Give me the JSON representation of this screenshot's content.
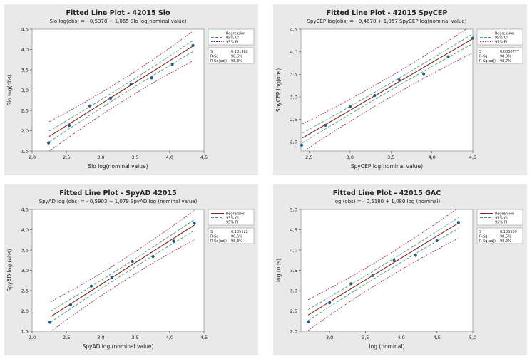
{
  "chart_data": [
    {
      "type": "scatter",
      "title": "Fitted Line Plot - 42015 Slo",
      "subtitle": "Slo log(obs) = - 0,5378 + 1,065 Slo log(nominal value)",
      "xlabel": "Slo log(nominal value)",
      "ylabel": "Slo log(obs)",
      "xlim": [
        2.0,
        4.5
      ],
      "ylim": [
        1.5,
        4.5
      ],
      "xticks": [
        2.0,
        2.5,
        3.0,
        3.5,
        4.0,
        4.5
      ],
      "xtick_labels": [
        "2,0",
        "2,5",
        "3,0",
        "3,5",
        "4,0",
        "4,5"
      ],
      "yticks": [
        1.5,
        2.0,
        2.5,
        3.0,
        3.5,
        4.0,
        4.5
      ],
      "ytick_labels": [
        "1,5",
        "2,0",
        "2,5",
        "3,0",
        "3,5",
        "4,0",
        "4,5"
      ],
      "intercept": -0.5378,
      "slope": 1.065,
      "ci_halfwidth": 0.1,
      "pi_halfwidth": 0.27,
      "fit_x": [
        2.25,
        4.34
      ],
      "x": [
        2.24,
        2.54,
        2.84,
        3.14,
        3.44,
        3.74,
        4.04,
        4.34
      ],
      "y": [
        1.7,
        2.13,
        2.61,
        2.8,
        3.15,
        3.3,
        3.64,
        4.1
      ],
      "legend": [
        {
          "label": "Regression",
          "color": "#8c1d1d",
          "dash": ""
        },
        {
          "label": "95% CI",
          "color": "#3f9e6e",
          "dash": "4,2"
        },
        {
          "label": "95% PI",
          "color": "#a0386e",
          "dash": "2,1.5"
        }
      ],
      "stats": [
        {
          "label": "S",
          "value": "0,101962"
        },
        {
          "label": "R-Sq",
          "value": "98,6%"
        },
        {
          "label": "R-Sq(adj)",
          "value": "98,3%"
        }
      ]
    },
    {
      "type": "scatter",
      "title": "Fitted Line Plot - 42015 SpyCEP",
      "subtitle": "SpyCEP log(obs) = - 0,4678 + 1,057 SpyCEP log(nominal value)",
      "xlabel": "SpyCEP log(nominal value)",
      "ylabel": "SpyCEP log(obs)",
      "xlim": [
        2.4,
        4.5
      ],
      "ylim": [
        1.8,
        4.5
      ],
      "xticks": [
        2.5,
        3.0,
        3.5,
        4.0,
        4.5
      ],
      "xtick_labels": [
        "2,5",
        "3,0",
        "3,5",
        "4,0",
        "4,5"
      ],
      "yticks": [
        2.0,
        2.5,
        3.0,
        3.5,
        4.0,
        4.5
      ],
      "ytick_labels": [
        "2,0",
        "2,5",
        "3,0",
        "3,5",
        "4,0",
        "4,5"
      ],
      "intercept": -0.4678,
      "slope": 1.057,
      "ci_halfwidth": 0.08,
      "pi_halfwidth": 0.23,
      "fit_x": [
        2.42,
        4.5
      ],
      "x": [
        2.41,
        2.7,
        3.0,
        3.3,
        3.6,
        3.9,
        4.2,
        4.5
      ],
      "y": [
        1.93,
        2.37,
        2.78,
        3.03,
        3.38,
        3.51,
        3.89,
        4.3
      ],
      "legend": [
        {
          "label": "Regression",
          "color": "#8c1d1d",
          "dash": ""
        },
        {
          "label": "95% CI",
          "color": "#3f9e6e",
          "dash": "4,2"
        },
        {
          "label": "95% PI",
          "color": "#a0386e",
          "dash": "2,1.5"
        }
      ],
      "stats": [
        {
          "label": "S",
          "value": "0,0880777"
        },
        {
          "label": "R-Sq",
          "value": "98,9%"
        },
        {
          "label": "R-Sq(adj)",
          "value": "98,7%"
        }
      ]
    },
    {
      "type": "scatter",
      "title": "Fitted Line Plot - SpyAD 42015",
      "subtitle": "SpyAD log (obs) = - 0,5903 + 1,079 SpyAD log (nominal value)",
      "xlabel": "SpyAD log (nominal value)",
      "ylabel": "SpyAD log (obs)",
      "xlim": [
        2.0,
        4.5
      ],
      "ylim": [
        1.5,
        4.5
      ],
      "xticks": [
        2.0,
        2.5,
        3.0,
        3.5,
        4.0,
        4.5
      ],
      "xtick_labels": [
        "2,0",
        "2,5",
        "3,0",
        "3,5",
        "4,0",
        "4,5"
      ],
      "yticks": [
        1.5,
        2.0,
        2.5,
        3.0,
        3.5,
        4.0,
        4.5
      ],
      "ytick_labels": [
        "1,5",
        "2,0",
        "2,5",
        "3,0",
        "3,5",
        "4,0",
        "4,5"
      ],
      "intercept": -0.5903,
      "slope": 1.079,
      "ci_halfwidth": 0.1,
      "pi_halfwidth": 0.27,
      "fit_x": [
        2.27,
        4.36
      ],
      "x": [
        2.26,
        2.56,
        2.86,
        3.16,
        3.46,
        3.76,
        4.06,
        4.36
      ],
      "y": [
        1.72,
        2.15,
        2.61,
        2.83,
        3.22,
        3.34,
        3.72,
        4.16
      ],
      "legend": [
        {
          "label": "Regression",
          "color": "#8c1d1d",
          "dash": ""
        },
        {
          "label": "95% CI",
          "color": "#3f9e6e",
          "dash": "4,2"
        },
        {
          "label": "95% PI",
          "color": "#a0386e",
          "dash": "2,1.5"
        }
      ],
      "stats": [
        {
          "label": "S",
          "value": "0,105122"
        },
        {
          "label": "R-Sq",
          "value": "98,6%"
        },
        {
          "label": "R-Sq(adj)",
          "value": "98,3%"
        }
      ]
    },
    {
      "type": "scatter",
      "title": "Fitted Line Plot - 42015 GAC",
      "subtitle": "log (obs) = - 0,5180 + 1,080 log (nominal)",
      "xlabel": "log (nominal)",
      "ylabel": "log (obs)",
      "xlim": [
        2.6,
        5.0
      ],
      "ylim": [
        2.0,
        5.0
      ],
      "xticks": [
        3.0,
        3.5,
        4.0,
        4.5,
        5.0
      ],
      "xtick_labels": [
        "3,0",
        "3,5",
        "4,0",
        "4,5",
        "5,0"
      ],
      "yticks": [
        2.0,
        2.5,
        3.0,
        3.5,
        4.0,
        4.5,
        5.0
      ],
      "ytick_labels": [
        "2,0",
        "2,5",
        "3,0",
        "3,5",
        "4,0",
        "4,5",
        "5,0"
      ],
      "intercept": -0.518,
      "slope": 1.08,
      "ci_halfwidth": 0.1,
      "pi_halfwidth": 0.28,
      "fit_x": [
        2.7,
        4.8
      ],
      "x": [
        2.7,
        3.0,
        3.3,
        3.6,
        3.9,
        4.2,
        4.5,
        4.8
      ],
      "y": [
        2.23,
        2.7,
        3.17,
        3.37,
        3.74,
        3.87,
        4.23,
        4.68
      ],
      "legend": [
        {
          "label": "Regression",
          "color": "#8c1d1d",
          "dash": ""
        },
        {
          "label": "95% CI",
          "color": "#3f9e6e",
          "dash": "4,2"
        },
        {
          "label": "95% PI",
          "color": "#a0386e",
          "dash": "2,1.5"
        }
      ],
      "stats": [
        {
          "label": "S",
          "value": "0,106509"
        },
        {
          "label": "R-Sq",
          "value": "98,5%"
        },
        {
          "label": "R-Sq(adj)",
          "value": "98,2%"
        }
      ]
    }
  ]
}
